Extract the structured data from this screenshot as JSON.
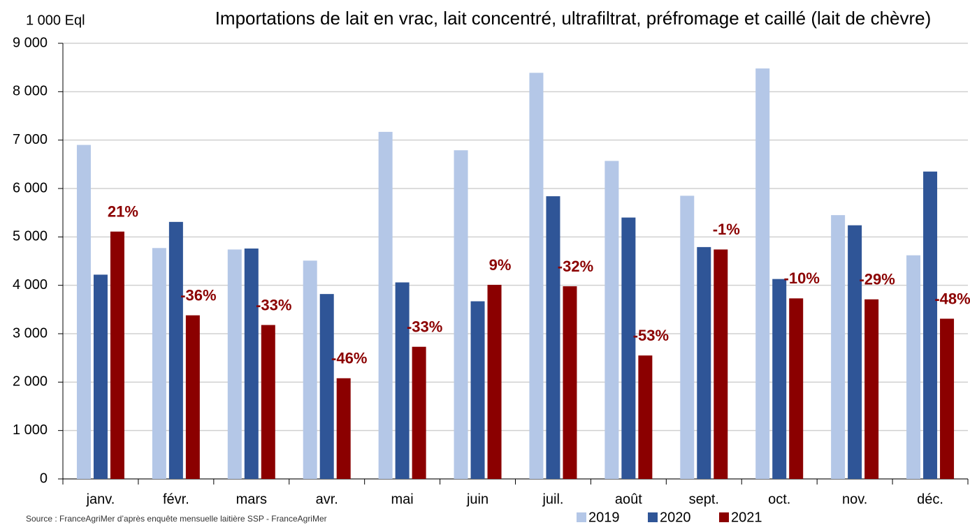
{
  "chart_data": {
    "type": "bar",
    "title": "Importations de lait en vrac, lait concentré, ultrafiltrat, préfromage et caillé (lait de chèvre)",
    "y_label": "1 000 Eql",
    "source": "Source : FranceAgriMer d’après enquête mensuelle laitière SSP - FranceAgriMer",
    "categories": [
      "janv.",
      "févr.",
      "mars",
      "avr.",
      "mai",
      "juin",
      "juil.",
      "août",
      "sept.",
      "oct.",
      "nov.",
      "déc."
    ],
    "series": [
      {
        "name": "2019",
        "color": "#b4c7e7",
        "values": [
          6900,
          4770,
          4740,
          4510,
          7170,
          6790,
          8390,
          6570,
          5850,
          8480,
          5450,
          4620
        ]
      },
      {
        "name": "2020",
        "color": "#2f5597",
        "values": [
          4220,
          5310,
          4760,
          3820,
          4060,
          3670,
          5840,
          5400,
          4790,
          4130,
          5240,
          6350
        ]
      },
      {
        "name": "2021",
        "color": "#8b0000",
        "values": [
          5110,
          3380,
          3180,
          2080,
          2730,
          4010,
          3980,
          2550,
          4740,
          3730,
          3710,
          3310
        ]
      }
    ],
    "annotations": [
      "21%",
      "-36%",
      "-33%",
      "-46%",
      "-33%",
      "9%",
      "-32%",
      "-53%",
      "-1%",
      "-10%",
      "-29%",
      "-48%"
    ],
    "annotation_color": "#8b0000",
    "ylim": [
      0,
      9000
    ],
    "yticks": [
      0,
      {
        "value": 1000,
        "label": "1 000"
      },
      {
        "value": 2000,
        "label": "2 000"
      },
      {
        "value": 3000,
        "label": "3 000"
      },
      {
        "value": 4000,
        "label": "4 000"
      },
      {
        "value": 5000,
        "label": "5 000"
      },
      {
        "value": 6000,
        "label": "6 000"
      },
      {
        "value": 7000,
        "label": "7 000"
      },
      {
        "value": 8000,
        "label": "8 000"
      },
      {
        "value": 9000,
        "label": "9 000"
      }
    ],
    "grid": true,
    "legend": "bottom"
  }
}
